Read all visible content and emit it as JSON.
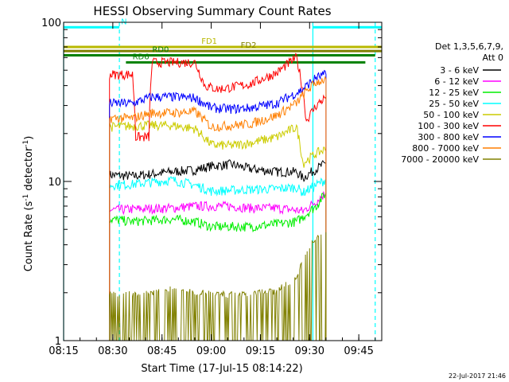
{
  "chart_data": {
    "type": "line",
    "title": "HESSI Observing Summary Count Rates",
    "xlabel": "Start Time (17-Jul-15 08:14:22)",
    "ylabel_main": "Count Rate (s",
    "ylabel_sup1": "-1",
    "ylabel_mid": " detector",
    "ylabel_sup2": "-1",
    "ylabel_end": ")",
    "yscale": "log",
    "ylim": [
      1,
      100
    ],
    "y_ticks": [
      {
        "v": 1,
        "label": "1"
      },
      {
        "v": 10,
        "label": "10"
      },
      {
        "v": 100,
        "label": "100"
      }
    ],
    "xlim_min": [
      15,
      112
    ],
    "x_ticks": [
      {
        "m": 15,
        "label": "08:15"
      },
      {
        "m": 30,
        "label": "08:30"
      },
      {
        "m": 45,
        "label": "08:45"
      },
      {
        "m": 60,
        "label": "09:00"
      },
      {
        "m": 75,
        "label": "09:15"
      },
      {
        "m": 90,
        "label": "09:30"
      },
      {
        "m": 105,
        "label": "09:45"
      }
    ],
    "legend": {
      "header1": "Det 1,3,5,6,7,9,",
      "header2": "Att 0",
      "placement": "right"
    },
    "series": [
      {
        "name": "3 - 6 keV",
        "color": "#000000",
        "points": [
          [
            29,
            11
          ],
          [
            36,
            10.8
          ],
          [
            48,
            11.5
          ],
          [
            55,
            11.8
          ],
          [
            60,
            12.5
          ],
          [
            66,
            12.8
          ],
          [
            72,
            12
          ],
          [
            80,
            11.5
          ],
          [
            86,
            11.5
          ],
          [
            88,
            10.5
          ],
          [
            92,
            12
          ],
          [
            95,
            13
          ]
        ]
      },
      {
        "name": "6 - 12 keV",
        "color": "#ff00ff",
        "points": [
          [
            29,
            6.6
          ],
          [
            36,
            6.7
          ],
          [
            48,
            6.8
          ],
          [
            55,
            7
          ],
          [
            60,
            7
          ],
          [
            66,
            7
          ],
          [
            72,
            6.8
          ],
          [
            80,
            6.8
          ],
          [
            86,
            6.6
          ],
          [
            88,
            6.5
          ],
          [
            92,
            7.5
          ],
          [
            95,
            8.5
          ]
        ]
      },
      {
        "name": "12 - 25 keV",
        "color": "#00ee00",
        "points": [
          [
            29,
            5.8
          ],
          [
            36,
            5.6
          ],
          [
            48,
            5.8
          ],
          [
            55,
            5.6
          ],
          [
            60,
            5.2
          ],
          [
            66,
            5.2
          ],
          [
            72,
            5.2
          ],
          [
            80,
            5.4
          ],
          [
            86,
            5.6
          ],
          [
            88,
            6
          ],
          [
            92,
            7
          ],
          [
            95,
            8.5
          ]
        ]
      },
      {
        "name": "25 - 50 keV",
        "color": "#00ffff",
        "points": [
          [
            29,
            9.5
          ],
          [
            36,
            9.6
          ],
          [
            48,
            10.2
          ],
          [
            55,
            9.5
          ],
          [
            60,
            8.7
          ],
          [
            66,
            8.8
          ],
          [
            72,
            8.9
          ],
          [
            80,
            9
          ],
          [
            86,
            9.2
          ],
          [
            88,
            8.5
          ],
          [
            92,
            9.5
          ],
          [
            95,
            10.3
          ]
        ]
      },
      {
        "name": "50 - 100 keV",
        "color": "#cccc00",
        "points": [
          [
            29,
            22
          ],
          [
            36,
            22.3
          ],
          [
            40,
            22.5
          ],
          [
            48,
            22.5
          ],
          [
            55,
            21.5
          ],
          [
            60,
            17
          ],
          [
            66,
            16.8
          ],
          [
            72,
            17.5
          ],
          [
            80,
            19
          ],
          [
            86,
            22
          ],
          [
            88,
            13
          ],
          [
            92,
            15
          ],
          [
            95,
            16
          ]
        ]
      },
      {
        "name": "100 - 300 keV",
        "color": "#ff0000",
        "points": [
          [
            29,
            47
          ],
          [
            36,
            47
          ],
          [
            37,
            19
          ],
          [
            41,
            19
          ],
          [
            42,
            56
          ],
          [
            48,
            56
          ],
          [
            55,
            56
          ],
          [
            58,
            40
          ],
          [
            62,
            38
          ],
          [
            66,
            39
          ],
          [
            72,
            41
          ],
          [
            80,
            48
          ],
          [
            86,
            60
          ],
          [
            89,
            24
          ],
          [
            92,
            30
          ],
          [
            95,
            34
          ]
        ]
      },
      {
        "name": "300 - 800 keV",
        "color": "#0000ff",
        "points": [
          [
            29,
            31
          ],
          [
            36,
            31
          ],
          [
            42,
            34
          ],
          [
            48,
            34
          ],
          [
            55,
            33.5
          ],
          [
            60,
            29
          ],
          [
            66,
            28.5
          ],
          [
            72,
            29
          ],
          [
            80,
            31
          ],
          [
            86,
            36
          ],
          [
            88,
            38
          ],
          [
            92,
            45
          ],
          [
            95,
            47
          ]
        ]
      },
      {
        "name": "800 - 7000 keV",
        "color": "#ff7f00",
        "points": [
          [
            29,
            25
          ],
          [
            36,
            25
          ],
          [
            42,
            27
          ],
          [
            48,
            27
          ],
          [
            55,
            27.5
          ],
          [
            60,
            22
          ],
          [
            66,
            22.5
          ],
          [
            72,
            23
          ],
          [
            80,
            26
          ],
          [
            86,
            31
          ],
          [
            88,
            35
          ],
          [
            92,
            42
          ],
          [
            95,
            44
          ]
        ]
      },
      {
        "name": "7000 - 20000 keV",
        "color": "#808000",
        "points": [
          [
            29,
            1.85
          ],
          [
            34,
            1.85
          ],
          [
            40,
            1.9
          ],
          [
            48,
            2.0
          ],
          [
            55,
            1.92
          ],
          [
            66,
            1.85
          ],
          [
            72,
            1.9
          ],
          [
            80,
            1.95
          ],
          [
            86,
            2.4
          ],
          [
            88,
            3.1
          ],
          [
            92,
            4.2
          ],
          [
            95,
            4.8
          ]
        ]
      }
    ],
    "segment_bars": [
      {
        "label": "N",
        "color": "#00ffff",
        "ranges": [
          [
            15,
            32
          ],
          [
            91,
            112
          ]
        ],
        "y": 93
      },
      {
        "label": "FD1",
        "color": "#b8b800",
        "ranges": [
          [
            15,
            112
          ]
        ],
        "y": 70
      },
      {
        "label": "FD2",
        "color": "#808000",
        "ranges": [
          [
            15,
            112
          ]
        ],
        "y": 66
      },
      {
        "label": "RD0",
        "color": "#008000",
        "ranges": [
          [
            15,
            110
          ]
        ],
        "y": 62
      },
      {
        "label": "RD6",
        "color": "#008000",
        "ranges": [
          [
            34,
            107
          ]
        ],
        "y": 56
      }
    ],
    "vertical_lines": [
      {
        "m": 15,
        "color": "#00ffff",
        "style": "solid"
      },
      {
        "m": 32,
        "color": "#00ffff",
        "style": "dashed"
      },
      {
        "m": 91,
        "color": "#00ffff",
        "style": "solid"
      },
      {
        "m": 110,
        "color": "#00ffff",
        "style": "dashed"
      }
    ],
    "footer_date": "22-Jul-2017 21:46"
  }
}
